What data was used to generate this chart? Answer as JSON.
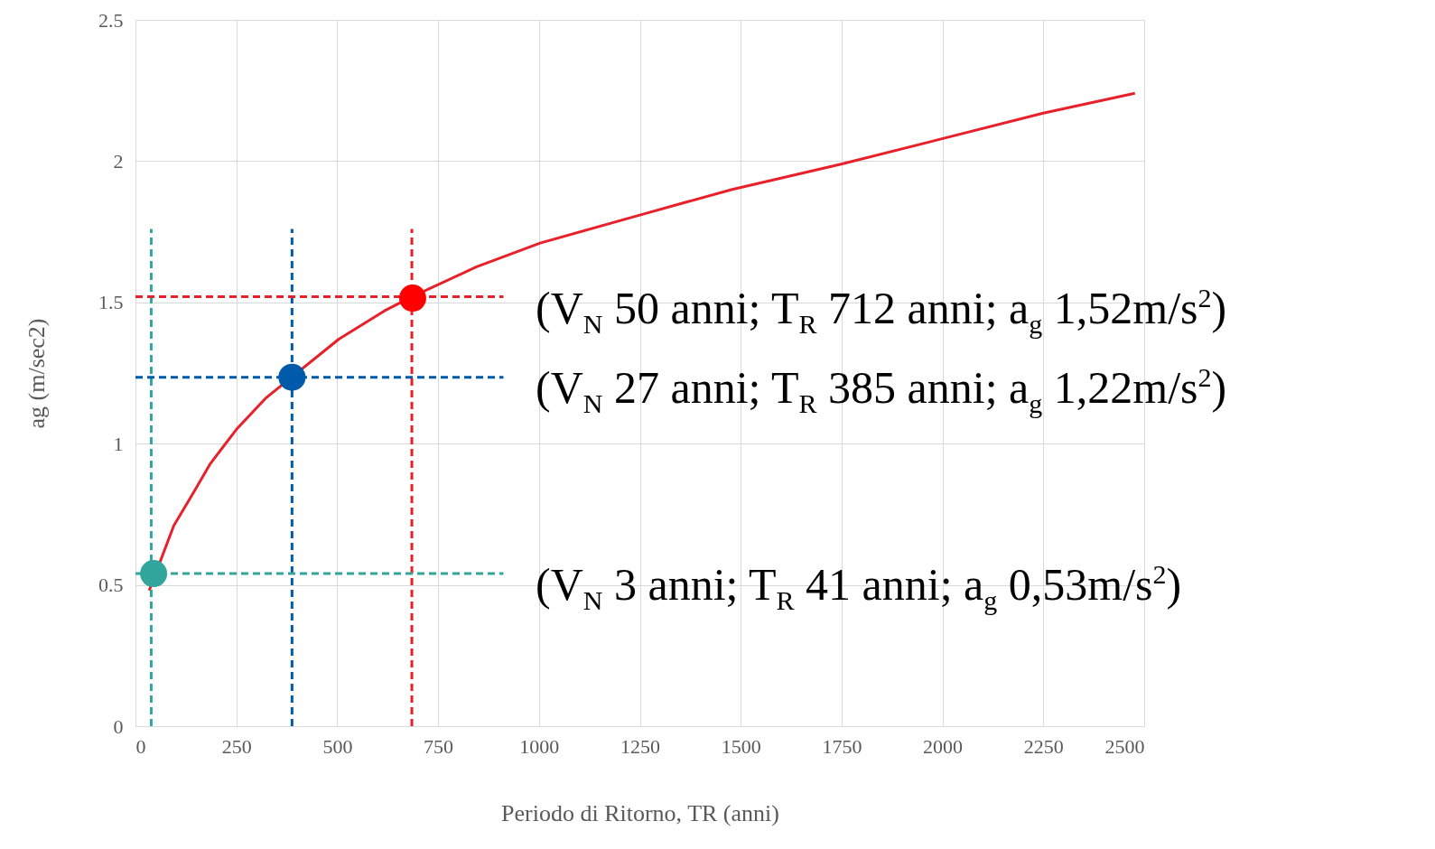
{
  "chart_data": {
    "type": "line",
    "xlabel": "Periodo di Ritorno, TR (anni)",
    "ylabel": "ag (m/sec2)",
    "xlim": [
      0,
      2500
    ],
    "xticks": [
      0,
      250,
      500,
      750,
      1000,
      1250,
      1500,
      1750,
      2000,
      2250,
      2500
    ],
    "ylim": [
      0,
      2.5
    ],
    "yticks": [
      0,
      0.5,
      1,
      1.5,
      2,
      2.5
    ],
    "grid": true,
    "series": [
      {
        "color": "#e8202a",
        "x": [
          34,
          95,
          141,
          186,
          250,
          322,
          504,
          617,
          685,
          844,
          1003,
          1252,
          1479,
          1751,
          2001,
          2250,
          2477
        ],
        "values": [
          0.48,
          0.71,
          0.82,
          0.93,
          1.05,
          1.16,
          1.37,
          1.47,
          1.52,
          1.625,
          1.71,
          1.81,
          1.9,
          1.99,
          2.08,
          2.17,
          2.24
        ]
      },
      {
        "color": "#32a59c",
        "line_style": "dashed",
        "x": [
          39,
          39
        ],
        "values": [
          0,
          1.76
        ]
      },
      {
        "color": "#005aaa",
        "line_style": "dashed",
        "x": [
          388,
          388
        ],
        "values": [
          0,
          1.76
        ]
      },
      {
        "color": "#e8202a",
        "line_style": "dashed",
        "x": [
          685,
          685
        ],
        "values": [
          0,
          1.76
        ]
      },
      {
        "color": "#32a59c",
        "line_style": "dashed",
        "x": [
          0,
          912
        ],
        "values": [
          0.54,
          0.54
        ]
      },
      {
        "color": "#005aaa",
        "line_style": "dashed",
        "x": [
          0,
          912
        ],
        "values": [
          1.235,
          1.235
        ]
      },
      {
        "color": "#e8202a",
        "line_style": "dashed",
        "x": [
          0,
          912
        ],
        "values": [
          1.52,
          1.52
        ]
      },
      {
        "type": "scatter",
        "marker": "circle",
        "color": "#32a59c",
        "x": [
          45
        ],
        "values": [
          0.54
        ]
      },
      {
        "type": "scatter",
        "marker": "circle",
        "color": "#005aaa",
        "x": [
          388
        ],
        "values": [
          1.235
        ]
      },
      {
        "type": "scatter",
        "marker": "circle",
        "color": "#ff0000",
        "x": [
          687
        ],
        "values": [
          1.515
        ]
      }
    ],
    "annotations": [
      "(V$_{N}$ 50 anni; T$_{R}$ 712 anni; a$_{g}$ 1,52m/s$^{2}$)",
      "(V$_{N}$ 27 anni; T$_{R}$ 385 anni; a$_{g}$ 1,22m/s$^{2}$)",
      "(V$_{N}$ 3 anni; T$_{R}$ 41 anni; a$_{g}$ 0,53m/s$^{2}$)"
    ]
  }
}
